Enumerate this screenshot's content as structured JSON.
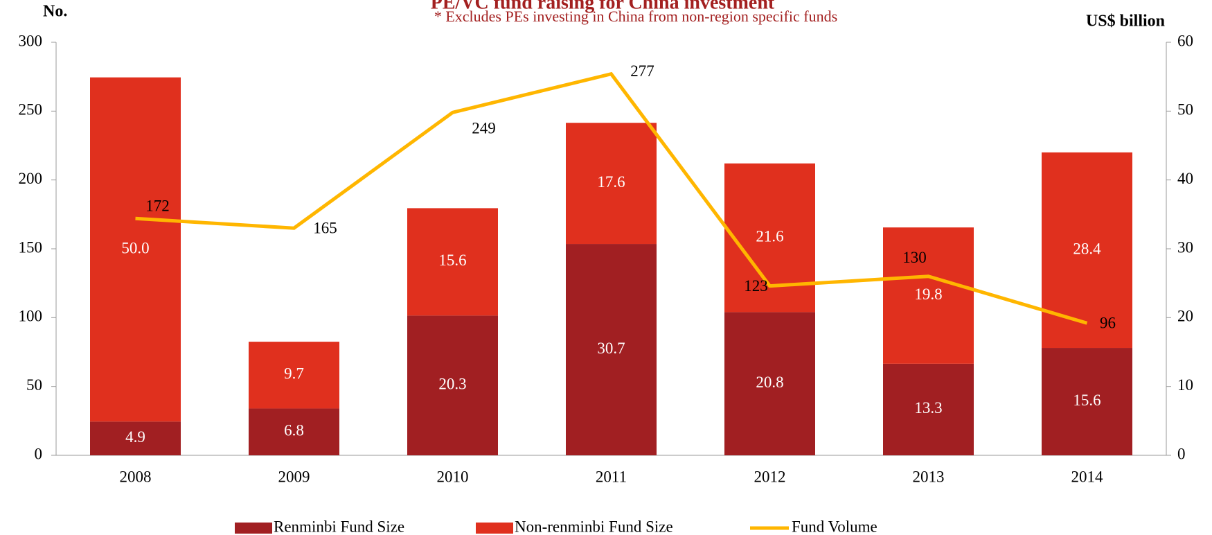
{
  "chart_data": {
    "type": "bar+line",
    "title": "PE/VC fund raising for China investment",
    "subtitle": "* Excludes PEs investing in China from non-region specific funds",
    "y_label": "No.",
    "y2_label": "US$ billion",
    "categories": [
      "2008",
      "2009",
      "2010",
      "2011",
      "2012",
      "2013",
      "2014"
    ],
    "series": [
      {
        "name": "Renminbi Fund Size",
        "type": "bar",
        "axis": "y2",
        "color": "#a11f22",
        "values": [
          4.9,
          6.8,
          20.3,
          30.7,
          20.8,
          13.3,
          15.6
        ],
        "value_labels": [
          "4.9",
          "6.8",
          "20.3",
          "30.7",
          "20.8",
          "13.3",
          "15.6"
        ]
      },
      {
        "name": "Non-renminbi Fund Size",
        "type": "bar",
        "axis": "y2",
        "color": "#e0301e",
        "values": [
          50.0,
          9.7,
          15.6,
          17.6,
          21.6,
          19.8,
          28.4
        ],
        "value_labels": [
          "50.0",
          "9.7",
          "15.6",
          "17.6",
          "21.6",
          "19.8",
          "28.4"
        ]
      },
      {
        "name": "Fund Volume",
        "type": "line",
        "axis": "y",
        "color": "#ffb600",
        "values": [
          172,
          165,
          249,
          277,
          123,
          130,
          96
        ]
      }
    ],
    "ylim": [
      0,
      300
    ],
    "yticks": [
      0,
      50,
      100,
      150,
      200,
      250,
      300
    ],
    "y2lim": [
      0,
      60
    ],
    "y2ticks": [
      0,
      10,
      20,
      30,
      40,
      50,
      60
    ]
  }
}
